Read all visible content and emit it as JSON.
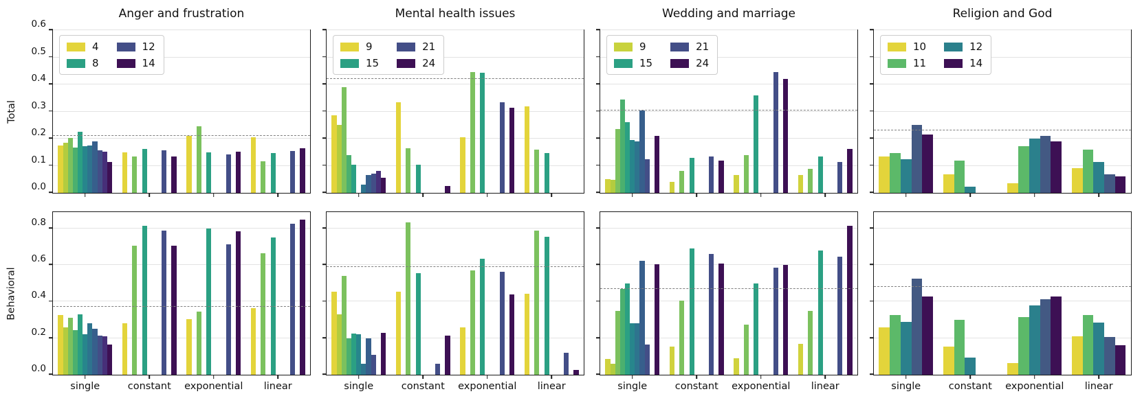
{
  "figure": {
    "background": "#ffffff",
    "spine_color": "#1a1a1a",
    "grid_color": "#e3e3e3",
    "dashed_color": "#7f7f7f"
  },
  "chart_data": {
    "type": "bar",
    "rows": [
      "Total",
      "Behavioral"
    ],
    "columns": [
      "Anger and frustration",
      "Mental health issues",
      "Wedding and marriage",
      "Religion and God"
    ],
    "x_categories": [
      "single",
      "constant",
      "exponential",
      "linear"
    ],
    "ytick_labels_top": [
      "0.0",
      "0.1",
      "0.2",
      "0.3",
      "0.4",
      "0.5",
      "0.6"
    ],
    "ytick_labels_bottom": [
      "0.0",
      "0.2",
      "0.4",
      "0.6",
      "0.8"
    ],
    "legend_position": "upper left",
    "grid": true,
    "palettes": {
      "ramp11": [
        "#e3d43b",
        "#b3cc3f",
        "#7cc15e",
        "#4bb06f",
        "#2ba083",
        "#27868c",
        "#2e748e",
        "#375f8c",
        "#434e87",
        "#472f79",
        "#3d1054"
      ],
      "ramp11_wedding": [
        "#d0d23d",
        "#b3cc3f",
        "#7cc15e",
        "#4bb06f",
        "#2ba083",
        "#27868c",
        "#2e748e",
        "#375f8c",
        "#434e87",
        "#472f79",
        "#3d1054"
      ],
      "ramp5": [
        "#e3d43b",
        "#5cb969",
        "#2b808c",
        "#435983",
        "#3d1054"
      ]
    },
    "subplots": [
      {
        "row": "Total",
        "col": "Anger and frustration",
        "ylim": [
          0,
          0.6
        ],
        "yticks": [
          0,
          0.1,
          0.2,
          0.3,
          0.4,
          0.5,
          0.6
        ],
        "dashed_y": 0.21,
        "palette": "ramp11",
        "legend": [
          {
            "label": "4",
            "color": "#e3d43b"
          },
          {
            "label": "8",
            "color": "#2ba083"
          },
          {
            "label": "12",
            "color": "#434e87"
          },
          {
            "label": "14",
            "color": "#3d1054"
          }
        ],
        "groups": [
          {
            "category": "single",
            "values": [
              0.175,
              0.185,
              0.202,
              0.168,
              0.225,
              0.172,
              0.175,
              0.19,
              0.158,
              0.152,
              0.115
            ]
          },
          {
            "category": "constant",
            "values": [
              0.15,
              0,
              0.135,
              0,
              0.162,
              0,
              0,
              0,
              0.158,
              0,
              0.135
            ]
          },
          {
            "category": "exponential",
            "values": [
              0.21,
              0,
              0.245,
              0,
              0.15,
              0,
              0,
              0,
              0.143,
              0,
              0.152
            ]
          },
          {
            "category": "linear",
            "values": [
              0.205,
              0,
              0.117,
              0,
              0.147,
              0,
              0,
              0,
              0.155,
              0,
              0.165
            ]
          }
        ]
      },
      {
        "row": "Total",
        "col": "Mental health issues",
        "ylim": [
          0,
          0.6
        ],
        "yticks": [
          0,
          0.1,
          0.2,
          0.3,
          0.4,
          0.5,
          0.6
        ],
        "dashed_y": 0.42,
        "palette": "ramp11",
        "legend": [
          {
            "label": "9",
            "color": "#e3d43b"
          },
          {
            "label": "15",
            "color": "#2ba083"
          },
          {
            "label": "21",
            "color": "#434e87"
          },
          {
            "label": "24",
            "color": "#3d1054"
          }
        ],
        "groups": [
          {
            "category": "single",
            "values": [
              0.285,
              0.25,
              0.39,
              0.14,
              0.105,
              0,
              0.03,
              0.065,
              0.072,
              0.08,
              0.055
            ]
          },
          {
            "category": "constant",
            "values": [
              0.335,
              0,
              0.165,
              0,
              0.103,
              0,
              0,
              0,
              0,
              0,
              0.025
            ]
          },
          {
            "category": "exponential",
            "values": [
              0.205,
              0,
              0.445,
              0,
              0.443,
              0,
              0,
              0,
              0.335,
              0,
              0.315
            ]
          },
          {
            "category": "linear",
            "values": [
              0.32,
              0,
              0.16,
              0,
              0.148,
              0,
              0,
              0,
              0,
              0,
              0
            ]
          }
        ]
      },
      {
        "row": "Total",
        "col": "Wedding and marriage",
        "ylim": [
          0,
          0.6
        ],
        "yticks": [
          0,
          0.1,
          0.2,
          0.3,
          0.4,
          0.5,
          0.6
        ],
        "dashed_y": 0.305,
        "palette": "ramp11_wedding",
        "legend": [
          {
            "label": "9",
            "color": "#c8d23d"
          },
          {
            "label": "15",
            "color": "#2ba083"
          },
          {
            "label": "21",
            "color": "#434e87"
          },
          {
            "label": "24",
            "color": "#3d1054"
          }
        ],
        "groups": [
          {
            "category": "single",
            "values": [
              0.05,
              0.048,
              0.235,
              0.345,
              0.26,
              0.195,
              0.19,
              0.305,
              0.125,
              0,
              0.21
            ]
          },
          {
            "category": "constant",
            "values": [
              0.04,
              0,
              0.08,
              0,
              0.13,
              0,
              0,
              0,
              0.135,
              0,
              0.12
            ]
          },
          {
            "category": "exponential",
            "values": [
              0.065,
              0,
              0.14,
              0,
              0.36,
              0,
              0,
              0,
              0.445,
              0,
              0.42
            ]
          },
          {
            "category": "linear",
            "values": [
              0.065,
              0,
              0.088,
              0,
              0.135,
              0,
              0,
              0,
              0.115,
              0,
              0.163
            ]
          }
        ]
      },
      {
        "row": "Total",
        "col": "Religion and God",
        "ylim": [
          0,
          0.6
        ],
        "yticks": [
          0,
          0.1,
          0.2,
          0.3,
          0.4,
          0.5,
          0.6
        ],
        "dashed_y": 0.23,
        "palette": "ramp5",
        "legend": [
          {
            "label": "10",
            "color": "#e3d43b"
          },
          {
            "label": "11",
            "color": "#5cb969"
          },
          {
            "label": "12",
            "color": "#2b808c"
          },
          {
            "label": "14",
            "color": "#3d1054"
          }
        ],
        "groups": [
          {
            "category": "single",
            "values": [
              0.135,
              0.148,
              0.125,
              0.25,
              0.215
            ]
          },
          {
            "category": "constant",
            "values": [
              0.068,
              0.118,
              0.024,
              0,
              0
            ]
          },
          {
            "category": "exponential",
            "values": [
              0.035,
              0.172,
              0.2,
              0.21,
              0.19
            ]
          },
          {
            "category": "linear",
            "values": [
              0.09,
              0.16,
              0.115,
              0.068,
              0.06
            ]
          }
        ]
      },
      {
        "row": "Behavioral",
        "col": "Anger and frustration",
        "ylim": [
          0,
          0.89
        ],
        "yticks": [
          0,
          0.2,
          0.4,
          0.6,
          0.8
        ],
        "dashed_y": 0.37,
        "palette": "ramp11",
        "legend": null,
        "groups": [
          {
            "category": "single",
            "values": [
              0.325,
              0.26,
              0.31,
              0.245,
              0.33,
              0.22,
              0.28,
              0.25,
              0.215,
              0.21,
              0.165
            ]
          },
          {
            "category": "constant",
            "values": [
              0.28,
              0,
              0.705,
              0,
              0.815,
              0,
              0,
              0,
              0.79,
              0,
              0.705
            ]
          },
          {
            "category": "exponential",
            "values": [
              0.305,
              0,
              0.345,
              0,
              0.8,
              0,
              0,
              0,
              0.715,
              0,
              0.785
            ]
          },
          {
            "category": "linear",
            "values": [
              0.365,
              0,
              0.665,
              0,
              0.75,
              0,
              0,
              0,
              0.825,
              0,
              0.85
            ]
          }
        ]
      },
      {
        "row": "Behavioral",
        "col": "Mental health issues",
        "ylim": [
          0,
          0.89
        ],
        "yticks": [
          0,
          0.2,
          0.4,
          0.6,
          0.8
        ],
        "dashed_y": 0.59,
        "palette": "ramp11",
        "legend": null,
        "groups": [
          {
            "category": "single",
            "values": [
              0.455,
              0.33,
              0.54,
              0.2,
              0.225,
              0.22,
              0.06,
              0.2,
              0.11,
              0,
              0.23
            ]
          },
          {
            "category": "constant",
            "values": [
              0.455,
              0,
              0.835,
              0,
              0.555,
              0,
              0,
              0,
              0.06,
              0,
              0.215
            ]
          },
          {
            "category": "exponential",
            "values": [
              0.26,
              0,
              0.57,
              0,
              0.635,
              0,
              0,
              0,
              0.565,
              0,
              0.44
            ]
          },
          {
            "category": "linear",
            "values": [
              0.445,
              0,
              0.79,
              0,
              0.755,
              0,
              0,
              0,
              0.12,
              0,
              0.025
            ]
          }
        ]
      },
      {
        "row": "Behavioral",
        "col": "Wedding and marriage",
        "ylim": [
          0,
          0.89
        ],
        "yticks": [
          0,
          0.2,
          0.4,
          0.6,
          0.8
        ],
        "dashed_y": 0.47,
        "palette": "ramp11_wedding",
        "legend": null,
        "groups": [
          {
            "category": "single",
            "values": [
              0.085,
              0.06,
              0.35,
              0.47,
              0.5,
              0.28,
              0.28,
              0.625,
              0.165,
              0,
              0.605
            ]
          },
          {
            "category": "constant",
            "values": [
              0.155,
              0,
              0.405,
              0,
              0.69,
              0,
              0,
              0,
              0.66,
              0,
              0.61
            ]
          },
          {
            "category": "exponential",
            "values": [
              0.09,
              0,
              0.275,
              0,
              0.5,
              0,
              0,
              0,
              0.585,
              0,
              0.6
            ]
          },
          {
            "category": "linear",
            "values": [
              0.17,
              0,
              0.35,
              0,
              0.68,
              0,
              0,
              0,
              0.645,
              0,
              0.815
            ]
          }
        ]
      },
      {
        "row": "Behavioral",
        "col": "Religion and God",
        "ylim": [
          0,
          0.89
        ],
        "yticks": [
          0,
          0.2,
          0.4,
          0.6,
          0.8
        ],
        "dashed_y": 0.48,
        "palette": "ramp5",
        "legend": null,
        "groups": [
          {
            "category": "single",
            "values": [
              0.26,
              0.325,
              0.29,
              0.525,
              0.43
            ]
          },
          {
            "category": "constant",
            "values": [
              0.155,
              0.3,
              0.095,
              0,
              0
            ]
          },
          {
            "category": "exponential",
            "values": [
              0.065,
              0.315,
              0.38,
              0.415,
              0.43
            ]
          },
          {
            "category": "linear",
            "values": [
              0.21,
              0.325,
              0.285,
              0.205,
              0.16
            ]
          }
        ]
      }
    ]
  }
}
